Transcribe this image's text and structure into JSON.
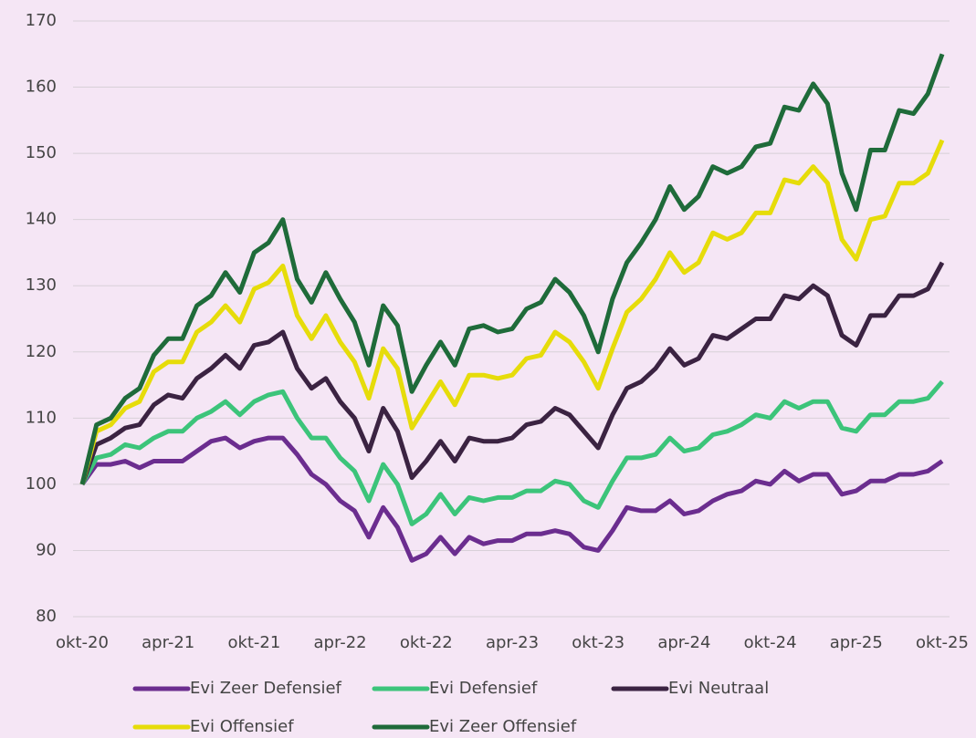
{
  "chart_data": {
    "type": "line",
    "categories": [
      "okt-20",
      null,
      null,
      null,
      null,
      null,
      "apr-21",
      null,
      null,
      null,
      null,
      null,
      "okt-21",
      null,
      null,
      null,
      null,
      null,
      "apr-22",
      null,
      null,
      null,
      null,
      null,
      "okt-22",
      null,
      null,
      null,
      null,
      null,
      "apr-23",
      null,
      null,
      null,
      null,
      null,
      "okt-23",
      null,
      null,
      null,
      null,
      null,
      "apr-24",
      null,
      null,
      null,
      null,
      null,
      "okt-24",
      null,
      null,
      null,
      null,
      null,
      "apr-25",
      null,
      null,
      null,
      null,
      null,
      "okt-25"
    ],
    "series": [
      {
        "name": "Evi Zeer Defensief",
        "color": "#6b2d8f",
        "values": [
          100,
          103,
          103,
          103.5,
          102.5,
          103.5,
          103.5,
          103.5,
          105,
          106.5,
          107,
          105.5,
          106.5,
          107,
          107,
          104.5,
          101.5,
          100,
          97.5,
          96,
          92,
          96.5,
          93.5,
          88.5,
          89.5,
          92,
          89.5,
          92,
          91,
          91.5,
          91.5,
          92.5,
          92.5,
          93,
          92.5,
          90.5,
          90,
          93,
          96.5,
          96,
          96,
          97.5,
          95.5,
          96,
          97.5,
          98.5,
          99,
          100.5,
          100,
          102,
          100.5,
          101.5,
          101.5,
          98.5,
          99,
          100.5,
          100.5,
          101.5,
          101.5,
          102,
          103.5
        ]
      },
      {
        "name": "Evi Defensief",
        "color": "#3cc47a",
        "values": [
          100,
          104,
          104.5,
          106,
          105.5,
          107,
          108,
          108,
          110,
          111,
          112.5,
          110.5,
          112.5,
          113.5,
          114,
          110,
          107,
          107,
          104,
          102,
          97.5,
          103,
          100,
          94,
          95.5,
          98.5,
          95.5,
          98,
          97.5,
          98,
          98,
          99,
          99,
          100.5,
          100,
          97.5,
          96.5,
          100.5,
          104,
          104,
          104.5,
          107,
          105,
          105.5,
          107.5,
          108,
          109,
          110.5,
          110,
          112.5,
          111.5,
          112.5,
          112.5,
          108.5,
          108,
          110.5,
          110.5,
          112.5,
          112.5,
          113,
          115.5
        ]
      },
      {
        "name": "Evi Neutraal",
        "color": "#3b2342",
        "values": [
          100,
          106,
          107,
          108.5,
          109,
          112,
          113.5,
          113,
          116,
          117.5,
          119.5,
          117.5,
          121,
          121.5,
          123,
          117.5,
          114.5,
          116,
          112.5,
          110,
          105,
          111.5,
          108,
          101,
          103.5,
          106.5,
          103.5,
          107,
          106.5,
          106.5,
          107,
          109,
          109.5,
          111.5,
          110.5,
          108,
          105.5,
          110.5,
          114.5,
          115.5,
          117.5,
          120.5,
          118,
          119,
          122.5,
          122,
          123.5,
          125,
          125,
          128.5,
          128,
          130,
          128.5,
          122.5,
          121,
          125.5,
          125.5,
          128.5,
          128.5,
          129.5,
          133.5
        ]
      },
      {
        "name": "Evi Offensief",
        "color": "#e6dc0a",
        "values": [
          100,
          108,
          109,
          111.5,
          112.5,
          117,
          118.5,
          118.5,
          123,
          124.5,
          127,
          124.5,
          129.5,
          130.5,
          133,
          125.5,
          122,
          125.5,
          121.5,
          118.5,
          113,
          120.5,
          117.5,
          108.5,
          112,
          115.5,
          112,
          116.5,
          116.5,
          116,
          116.5,
          119,
          119.5,
          123,
          121.5,
          118.5,
          114.5,
          120.5,
          126,
          128,
          131,
          135,
          132,
          133.5,
          138,
          137,
          138,
          141,
          141,
          146,
          145.5,
          148,
          145.5,
          137,
          134,
          140,
          140.5,
          145.5,
          145.5,
          147,
          152
        ]
      },
      {
        "name": "Evi Zeer Offensief",
        "color": "#1f6b3a",
        "values": [
          100,
          109,
          110,
          113,
          114.5,
          119.5,
          122,
          122,
          127,
          128.5,
          132,
          129,
          135,
          136.5,
          140,
          131,
          127.5,
          132,
          128,
          124.5,
          118,
          127,
          124,
          114,
          118,
          121.5,
          118,
          123.5,
          124,
          123,
          123.5,
          126.5,
          127.5,
          131,
          129,
          125.5,
          120,
          128,
          133.5,
          136.5,
          140,
          145,
          141.5,
          143.5,
          148,
          147,
          148,
          151,
          151.5,
          157,
          156.5,
          160.5,
          157.5,
          147,
          141.5,
          150.5,
          150.5,
          156.5,
          156,
          159,
          165
        ]
      }
    ],
    "ylim": [
      80,
      170
    ],
    "yticks": [
      80,
      90,
      100,
      110,
      120,
      130,
      140,
      150,
      160,
      170
    ],
    "grid": true
  }
}
